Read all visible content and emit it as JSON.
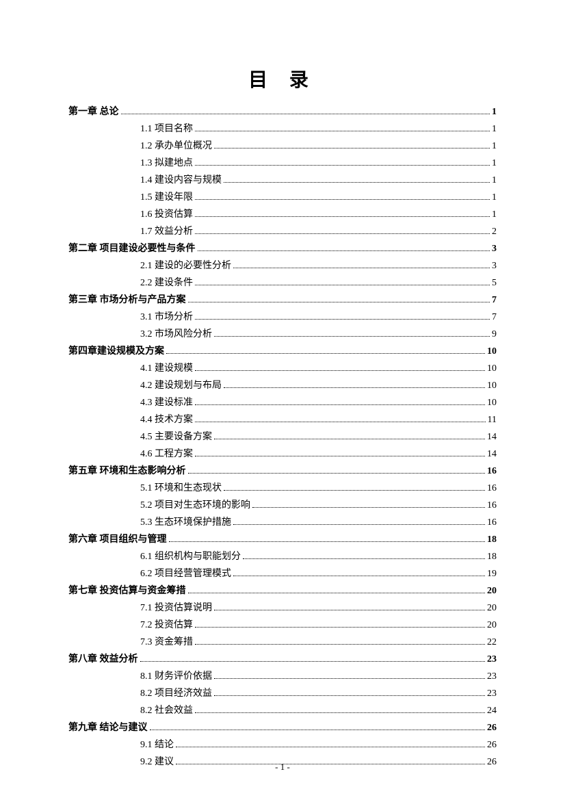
{
  "title": "目 录",
  "pageFooter": "- 1 -",
  "chapters": [
    {
      "label": "第一章  总论",
      "page": " 1",
      "subs": [
        {
          "label": "1.1  项目名称",
          "page": "1"
        },
        {
          "label": "1.2  承办单位概况",
          "page": "1"
        },
        {
          "label": "1.3  拟建地点",
          "page": "1"
        },
        {
          "label": "1.4  建设内容与规模",
          "page": "1"
        },
        {
          "label": "1.5  建设年限",
          "page": "1"
        },
        {
          "label": "1.6  投资估算",
          "page": "1"
        },
        {
          "label": "1.7  效益分析",
          "page": "2"
        }
      ]
    },
    {
      "label": "第二章  项目建设必要性与条件",
      "page": " 3",
      "subs": [
        {
          "label": "2.1  建设的必要性分析",
          "page": "3"
        },
        {
          "label": "2.2  建设条件",
          "page": "5"
        }
      ]
    },
    {
      "label": "第三章  市场分析与产品方案",
      "page": " 7",
      "subs": [
        {
          "label": "3.1  市场分析",
          "page": "7"
        },
        {
          "label": "3.2  市场风险分析",
          "page": "9"
        }
      ]
    },
    {
      "label": "第四章建设规模及方案",
      "page": " 10",
      "subs": [
        {
          "label": "4.1  建设规模",
          "page": "10"
        },
        {
          "label": "4.2  建设规划与布局",
          "page": "10"
        },
        {
          "label": "4.3  建设标准",
          "page": "10"
        },
        {
          "label": "4.4  技术方案",
          "page": "11"
        },
        {
          "label": "4.5  主要设备方案",
          "page": "14"
        },
        {
          "label": "4.6  工程方案",
          "page": "14"
        }
      ]
    },
    {
      "label": "第五章  环境和生态影响分析",
      "page": "16",
      "subs": [
        {
          "label": "5.1  环境和生态现状",
          "page": "16"
        },
        {
          "label": "5.2  项目对生态环境的影响",
          "page": " 16"
        },
        {
          "label": "5.3  生态环境保护措施",
          "page": "16"
        }
      ]
    },
    {
      "label": "第六章  项目组织与管理",
      "page": " 18",
      "subs": [
        {
          "label": "6.1  组织机构与职能划分",
          "page": "18"
        },
        {
          "label": "6.2  项目经营管理模式",
          "page": "19"
        }
      ]
    },
    {
      "label": "第七章  投资估算与资金筹措",
      "page": " 20",
      "subs": [
        {
          "label": "7.1  投资估算说明",
          "page": "20"
        },
        {
          "label": "7.2  投资估算",
          "page": "20"
        },
        {
          "label": "7.3  资金筹措",
          "page": "22"
        }
      ]
    },
    {
      "label": "第八章  效益分析",
      "page": " 23",
      "subs": [
        {
          "label": "8.1  财务评价依据",
          "page": "23"
        },
        {
          "label": "8.2  项目经济效益",
          "page": "23"
        },
        {
          "label": "8.2  社会效益",
          "page": "24"
        }
      ]
    },
    {
      "label": "第九章  结论与建议",
      "page": "26",
      "subs": [
        {
          "label": "9.1  结论",
          "page": "26"
        },
        {
          "label": "9.2  建议",
          "page": "26"
        }
      ]
    }
  ]
}
